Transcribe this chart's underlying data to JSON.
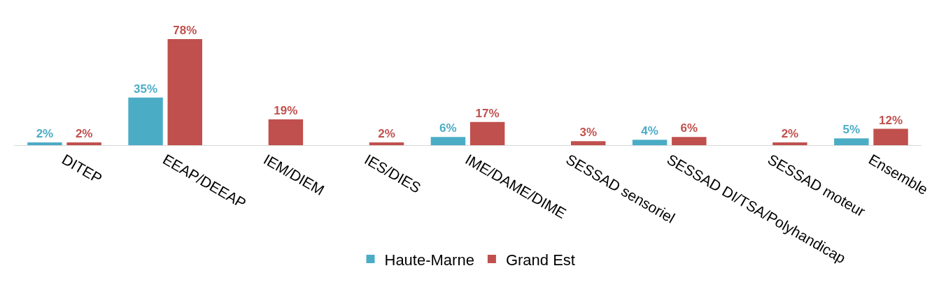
{
  "chart_data": {
    "type": "bar",
    "categories": [
      "DITEP",
      "EEAP/DEEAP",
      "IEM/DIEM",
      "IES/DIES",
      "IME/DAME/DIME",
      "SESSAD sensoriel",
      "SESSAD DI/TSA/Polyhandicap",
      "SESSAD moteur",
      "Ensemble"
    ],
    "series": [
      {
        "name": "Haute-Marne",
        "color": "#4bacc6",
        "values": [
          2,
          35,
          null,
          null,
          6,
          null,
          4,
          null,
          5
        ],
        "value_labels": [
          "2%",
          "35%",
          null,
          null,
          "6%",
          null,
          "4%",
          null,
          "5%"
        ]
      },
      {
        "name": "Grand Est",
        "color": "#c0504d",
        "values": [
          2,
          78,
          19,
          2,
          17,
          3,
          6,
          2,
          12
        ],
        "value_labels": [
          "2%",
          "78%",
          "19%",
          "2%",
          "17%",
          "3%",
          "6%",
          "2%",
          "12%"
        ]
      }
    ],
    "legend": "bottom",
    "tick_labels": "x"
  }
}
